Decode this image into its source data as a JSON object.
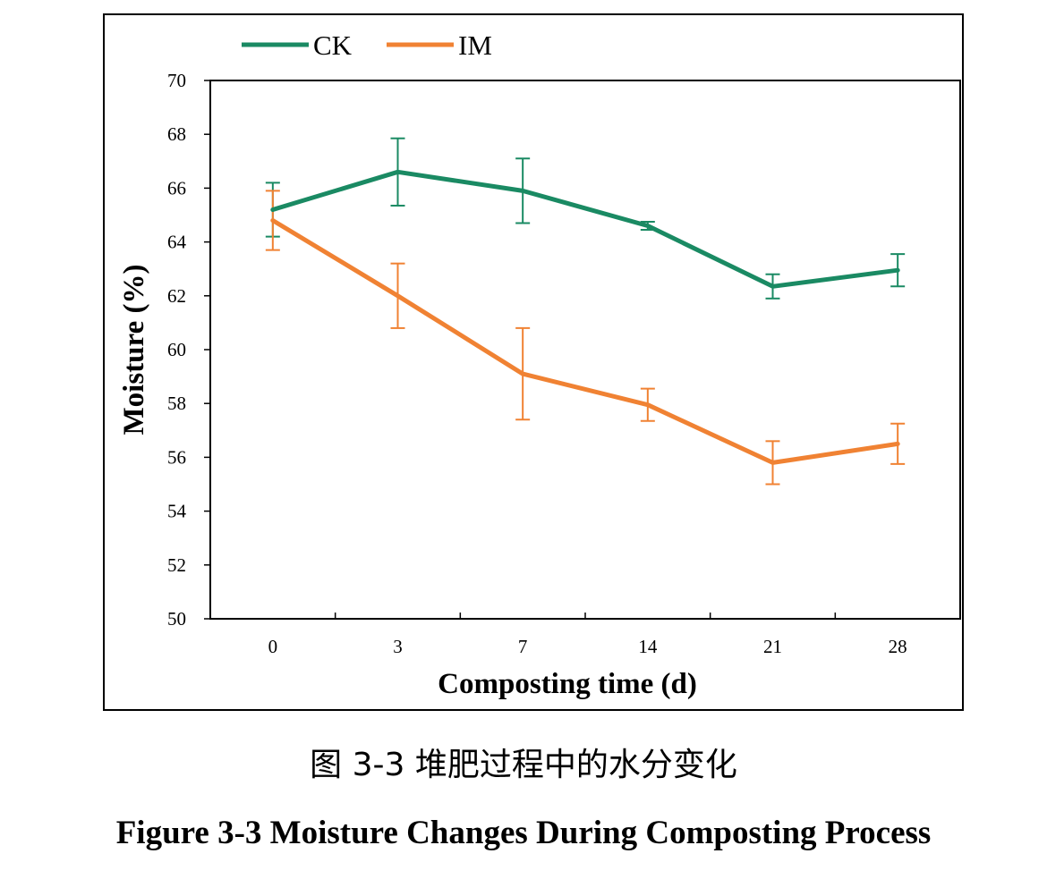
{
  "chart_data": {
    "type": "line",
    "categories": [
      "0",
      "3",
      "7",
      "14",
      "21",
      "28"
    ],
    "series": [
      {
        "name": "CK",
        "color": "#1a8a63",
        "values": [
          65.2,
          66.6,
          65.9,
          64.6,
          62.35,
          62.95
        ],
        "errors": [
          1.0,
          1.25,
          1.2,
          0.15,
          0.45,
          0.6
        ]
      },
      {
        "name": "IM",
        "color": "#f08233",
        "values": [
          64.8,
          62.0,
          59.1,
          57.95,
          55.8,
          56.5
        ],
        "errors": [
          1.1,
          1.2,
          1.7,
          0.6,
          0.8,
          0.75
        ]
      }
    ],
    "xlabel": "Composting time (d)",
    "ylabel": "Moisture (%)",
    "ylim": [
      50,
      70
    ],
    "yticks": [
      "50",
      "52",
      "54",
      "56",
      "58",
      "60",
      "62",
      "64",
      "66",
      "68",
      "70"
    ],
    "grid": false,
    "legend": "top-left"
  },
  "captions": {
    "cn": "图 3-3  堆肥过程中的水分变化",
    "en": "Figure 3-3 Moisture Changes During Composting Process"
  }
}
